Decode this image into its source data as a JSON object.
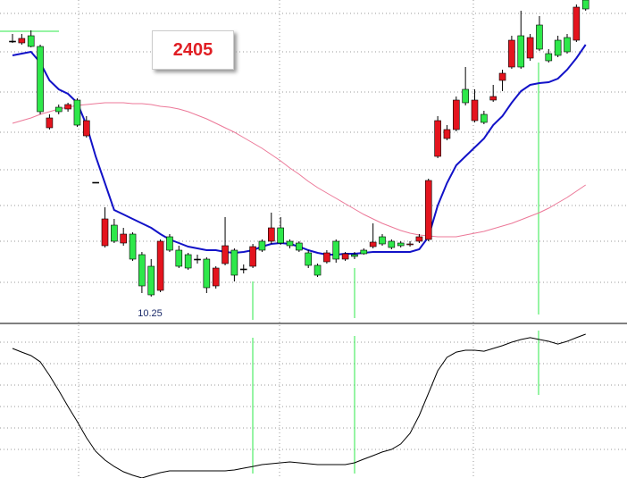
{
  "chart_data": [
    {
      "type": "candlestick",
      "title": "2405",
      "annotations": [
        {
          "text": "10.25"
        }
      ],
      "up_color": "#e4141e",
      "down_color": "#2ee84a",
      "doji_color": "#000000",
      "ylim": [
        9.97,
        13.57
      ],
      "grid": true,
      "open": [
        13.11,
        13.09,
        13.17,
        13.05,
        12.14,
        12.37,
        12.35,
        12.45,
        12.05,
        11.53,
        10.82,
        11.05,
        10.85,
        10.95,
        10.72,
        10.59,
        10.32,
        10.92,
        10.77,
        10.72,
        10.67,
        10.67,
        10.37,
        10.62,
        10.77,
        10.56,
        10.59,
        10.87,
        10.87,
        11.02,
        10.87,
        10.85,
        10.74,
        10.6,
        10.64,
        10.87,
        10.67,
        10.72,
        10.77,
        10.81,
        10.92,
        10.87,
        10.85,
        10.83,
        10.87,
        10.89,
        11.82,
        12.02,
        12.12,
        12.57,
        12.22,
        12.29,
        12.45,
        12.67,
        12.82,
        13.17,
        12.92,
        13.29,
        12.97,
        13.12,
        13.15,
        13.12,
        13.57
      ],
      "high": [
        13.19,
        13.19,
        13.23,
        13.07,
        12.29,
        12.4,
        12.42,
        12.47,
        12.27,
        11.53,
        11.25,
        11.12,
        11.02,
        10.97,
        10.75,
        10.67,
        10.89,
        10.95,
        10.82,
        10.74,
        10.72,
        10.69,
        10.59,
        11.14,
        10.79,
        10.61,
        10.84,
        10.89,
        11.19,
        11.14,
        10.89,
        10.87,
        10.77,
        10.62,
        10.77,
        10.89,
        10.75,
        10.75,
        10.79,
        11.07,
        10.95,
        10.89,
        10.87,
        10.87,
        10.95,
        11.57,
        12.27,
        12.17,
        12.49,
        12.82,
        12.57,
        12.33,
        12.62,
        12.79,
        13.17,
        13.45,
        13.19,
        13.39,
        13.02,
        13.17,
        13.19,
        13.52,
        13.62
      ],
      "low": [
        13.09,
        13.07,
        13.04,
        12.29,
        12.12,
        12.29,
        12.32,
        12.15,
        12.03,
        11.53,
        10.8,
        10.85,
        10.82,
        10.65,
        10.29,
        10.25,
        10.3,
        10.75,
        10.57,
        10.55,
        10.62,
        10.29,
        10.34,
        10.6,
        10.42,
        10.51,
        10.57,
        10.75,
        10.84,
        10.83,
        10.79,
        10.75,
        10.57,
        10.47,
        10.62,
        10.63,
        10.65,
        10.67,
        10.72,
        10.79,
        10.82,
        10.78,
        10.8,
        10.81,
        10.85,
        10.87,
        11.8,
        12.0,
        12.1,
        12.39,
        12.2,
        12.18,
        12.43,
        12.55,
        12.8,
        12.8,
        12.89,
        13.0,
        12.87,
        12.93,
        12.97,
        13.1,
        13.45
      ],
      "close": [
        13.11,
        13.14,
        13.05,
        12.32,
        12.25,
        12.32,
        12.4,
        12.17,
        12.22,
        11.53,
        11.12,
        10.87,
        10.95,
        10.67,
        10.37,
        10.27,
        10.87,
        10.77,
        10.59,
        10.57,
        10.67,
        10.35,
        10.57,
        10.82,
        10.49,
        10.56,
        10.81,
        10.77,
        11.02,
        10.85,
        10.82,
        10.77,
        10.6,
        10.49,
        10.74,
        10.67,
        10.73,
        10.7,
        10.73,
        10.86,
        10.84,
        10.8,
        10.82,
        10.84,
        10.92,
        11.55,
        12.22,
        12.12,
        12.45,
        12.42,
        12.45,
        12.2,
        12.49,
        12.75,
        13.12,
        12.82,
        13.15,
        13.02,
        12.89,
        12.95,
        12.99,
        13.49,
        13.47
      ],
      "lines": [
        {
          "color": "#1212c8",
          "values": [
            12.95,
            12.97,
            12.99,
            12.87,
            12.67,
            12.57,
            12.52,
            12.42,
            12.17,
            11.82,
            11.52,
            11.22,
            11.17,
            11.12,
            11.07,
            11.02,
            10.95,
            10.89,
            10.85,
            10.81,
            10.79,
            10.77,
            10.77,
            10.75,
            10.74,
            10.75,
            10.77,
            10.81,
            10.84,
            10.85,
            10.84,
            10.81,
            10.77,
            10.74,
            10.72,
            10.72,
            10.73,
            10.73,
            10.74,
            10.75,
            10.75,
            10.75,
            10.75,
            10.75,
            10.78,
            10.92,
            11.27,
            11.52,
            11.72,
            11.82,
            11.92,
            12.02,
            12.17,
            12.27,
            12.42,
            12.55,
            12.62,
            12.64,
            12.65,
            12.69,
            12.79,
            12.92,
            13.07
          ]
        },
        {
          "color": "#ec7898",
          "values": [
            12.19,
            12.22,
            12.25,
            12.29,
            12.32,
            12.35,
            12.37,
            12.39,
            12.4,
            12.41,
            12.42,
            12.42,
            12.42,
            12.41,
            12.41,
            12.4,
            12.38,
            12.37,
            12.35,
            12.32,
            12.28,
            12.24,
            12.19,
            12.14,
            12.09,
            12.03,
            11.97,
            11.91,
            11.84,
            11.77,
            11.69,
            11.62,
            11.54,
            11.47,
            11.41,
            11.35,
            11.29,
            11.23,
            11.17,
            11.12,
            11.07,
            11.03,
            10.99,
            10.96,
            10.94,
            10.93,
            10.92,
            10.92,
            10.92,
            10.94,
            10.96,
            10.98,
            11.01,
            11.04,
            11.07,
            11.11,
            11.15,
            11.19,
            11.24,
            11.3,
            11.36,
            11.43,
            11.5
          ]
        }
      ]
    },
    {
      "type": "line",
      "color": "#000000",
      "ylim": [
        0,
        100
      ],
      "grid": true,
      "values": [
        85.3,
        82.9,
        80.6,
        76.5,
        67.6,
        57.6,
        47.1,
        37.1,
        26.5,
        17.6,
        11.8,
        7.6,
        4.1,
        1.8,
        0,
        1.8,
        3.5,
        4.7,
        4.7,
        4.7,
        4.7,
        4.7,
        4.7,
        4.7,
        5.3,
        6.5,
        7.6,
        8.8,
        9.4,
        10.0,
        10.6,
        10.0,
        9.4,
        8.8,
        8.8,
        8.8,
        8.8,
        10.0,
        12.4,
        14.7,
        17.1,
        18.8,
        22.4,
        29.4,
        41.2,
        55.9,
        70.6,
        79.4,
        82.9,
        84.1,
        84.1,
        83.5,
        85.3,
        87.1,
        89.4,
        91.2,
        92.4,
        91.2,
        90.0,
        88.2,
        90.0,
        92.4,
        94.7
      ]
    }
  ]
}
